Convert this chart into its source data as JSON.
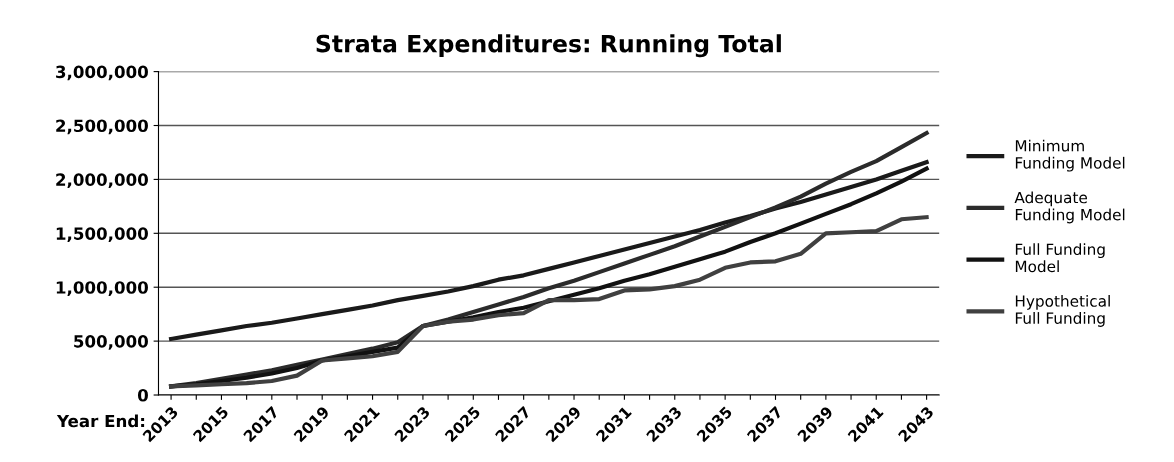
{
  "chart_data": {
    "type": "line",
    "title": "Strata Expenditures: Running Total",
    "xlabel": "Year End:",
    "categories": [
      "2013",
      null,
      "2015",
      null,
      "2017",
      null,
      "2019",
      null,
      "2021",
      null,
      "2023",
      null,
      "2025",
      null,
      "2027",
      null,
      "2029",
      null,
      "2031",
      null,
      "2033",
      null,
      "2035",
      null,
      "2037",
      null,
      "2039",
      null,
      "2041",
      null,
      "2043"
    ],
    "series": [
      {
        "name": "Minimum Funding Model",
        "color": "#1a1a1a",
        "values": [
          520000,
          560000,
          600000,
          640000,
          670000,
          710000,
          750000,
          790000,
          830000,
          880000,
          920000,
          960000,
          1010000,
          1070000,
          1110000,
          1170000,
          1230000,
          1290000,
          1350000,
          1410000,
          1470000,
          1530000,
          1600000,
          1660000,
          1730000,
          1790000,
          1860000,
          1930000,
          2000000,
          2080000,
          2160000
        ]
      },
      {
        "name": "Adequate Funding Model",
        "color": "#2b2b2b",
        "values": [
          80000,
          110000,
          150000,
          190000,
          230000,
          280000,
          330000,
          380000,
          430000,
          490000,
          640000,
          700000,
          770000,
          840000,
          910000,
          990000,
          1060000,
          1140000,
          1220000,
          1300000,
          1380000,
          1470000,
          1560000,
          1650000,
          1740000,
          1840000,
          1960000,
          2070000,
          2170000,
          2300000,
          2430000
        ]
      },
      {
        "name": "Full Funding Model",
        "color": "#111111",
        "values": [
          80000,
          100000,
          130000,
          160000,
          200000,
          250000,
          320000,
          360000,
          400000,
          440000,
          640000,
          680000,
          720000,
          770000,
          810000,
          870000,
          930000,
          990000,
          1060000,
          1120000,
          1190000,
          1260000,
          1330000,
          1420000,
          1500000,
          1590000,
          1680000,
          1770000,
          1870000,
          1980000,
          2100000
        ]
      },
      {
        "name": "Hypothetical Full Funding",
        "color": "#404040",
        "values": [
          80000,
          90000,
          100000,
          110000,
          130000,
          180000,
          320000,
          340000,
          360000,
          400000,
          640000,
          680000,
          700000,
          740000,
          760000,
          880000,
          880000,
          890000,
          970000,
          980000,
          1010000,
          1070000,
          1180000,
          1230000,
          1240000,
          1310000,
          1500000,
          1510000,
          1520000,
          1630000,
          1650000
        ]
      }
    ],
    "ylim": [
      0,
      3000000
    ],
    "yticks": [
      {
        "value": 0,
        "label": "0"
      },
      {
        "value": 500000,
        "label": "500,000"
      },
      {
        "value": 1000000,
        "label": "1,000,000"
      },
      {
        "value": 1500000,
        "label": "1,500,000"
      },
      {
        "value": 2000000,
        "label": "2,000,000"
      },
      {
        "value": 2500000,
        "label": "2,500,000"
      },
      {
        "value": 3000000,
        "label": "3,000,000"
      }
    ],
    "grid": "y",
    "legend": "right",
    "line_style": "solid"
  }
}
